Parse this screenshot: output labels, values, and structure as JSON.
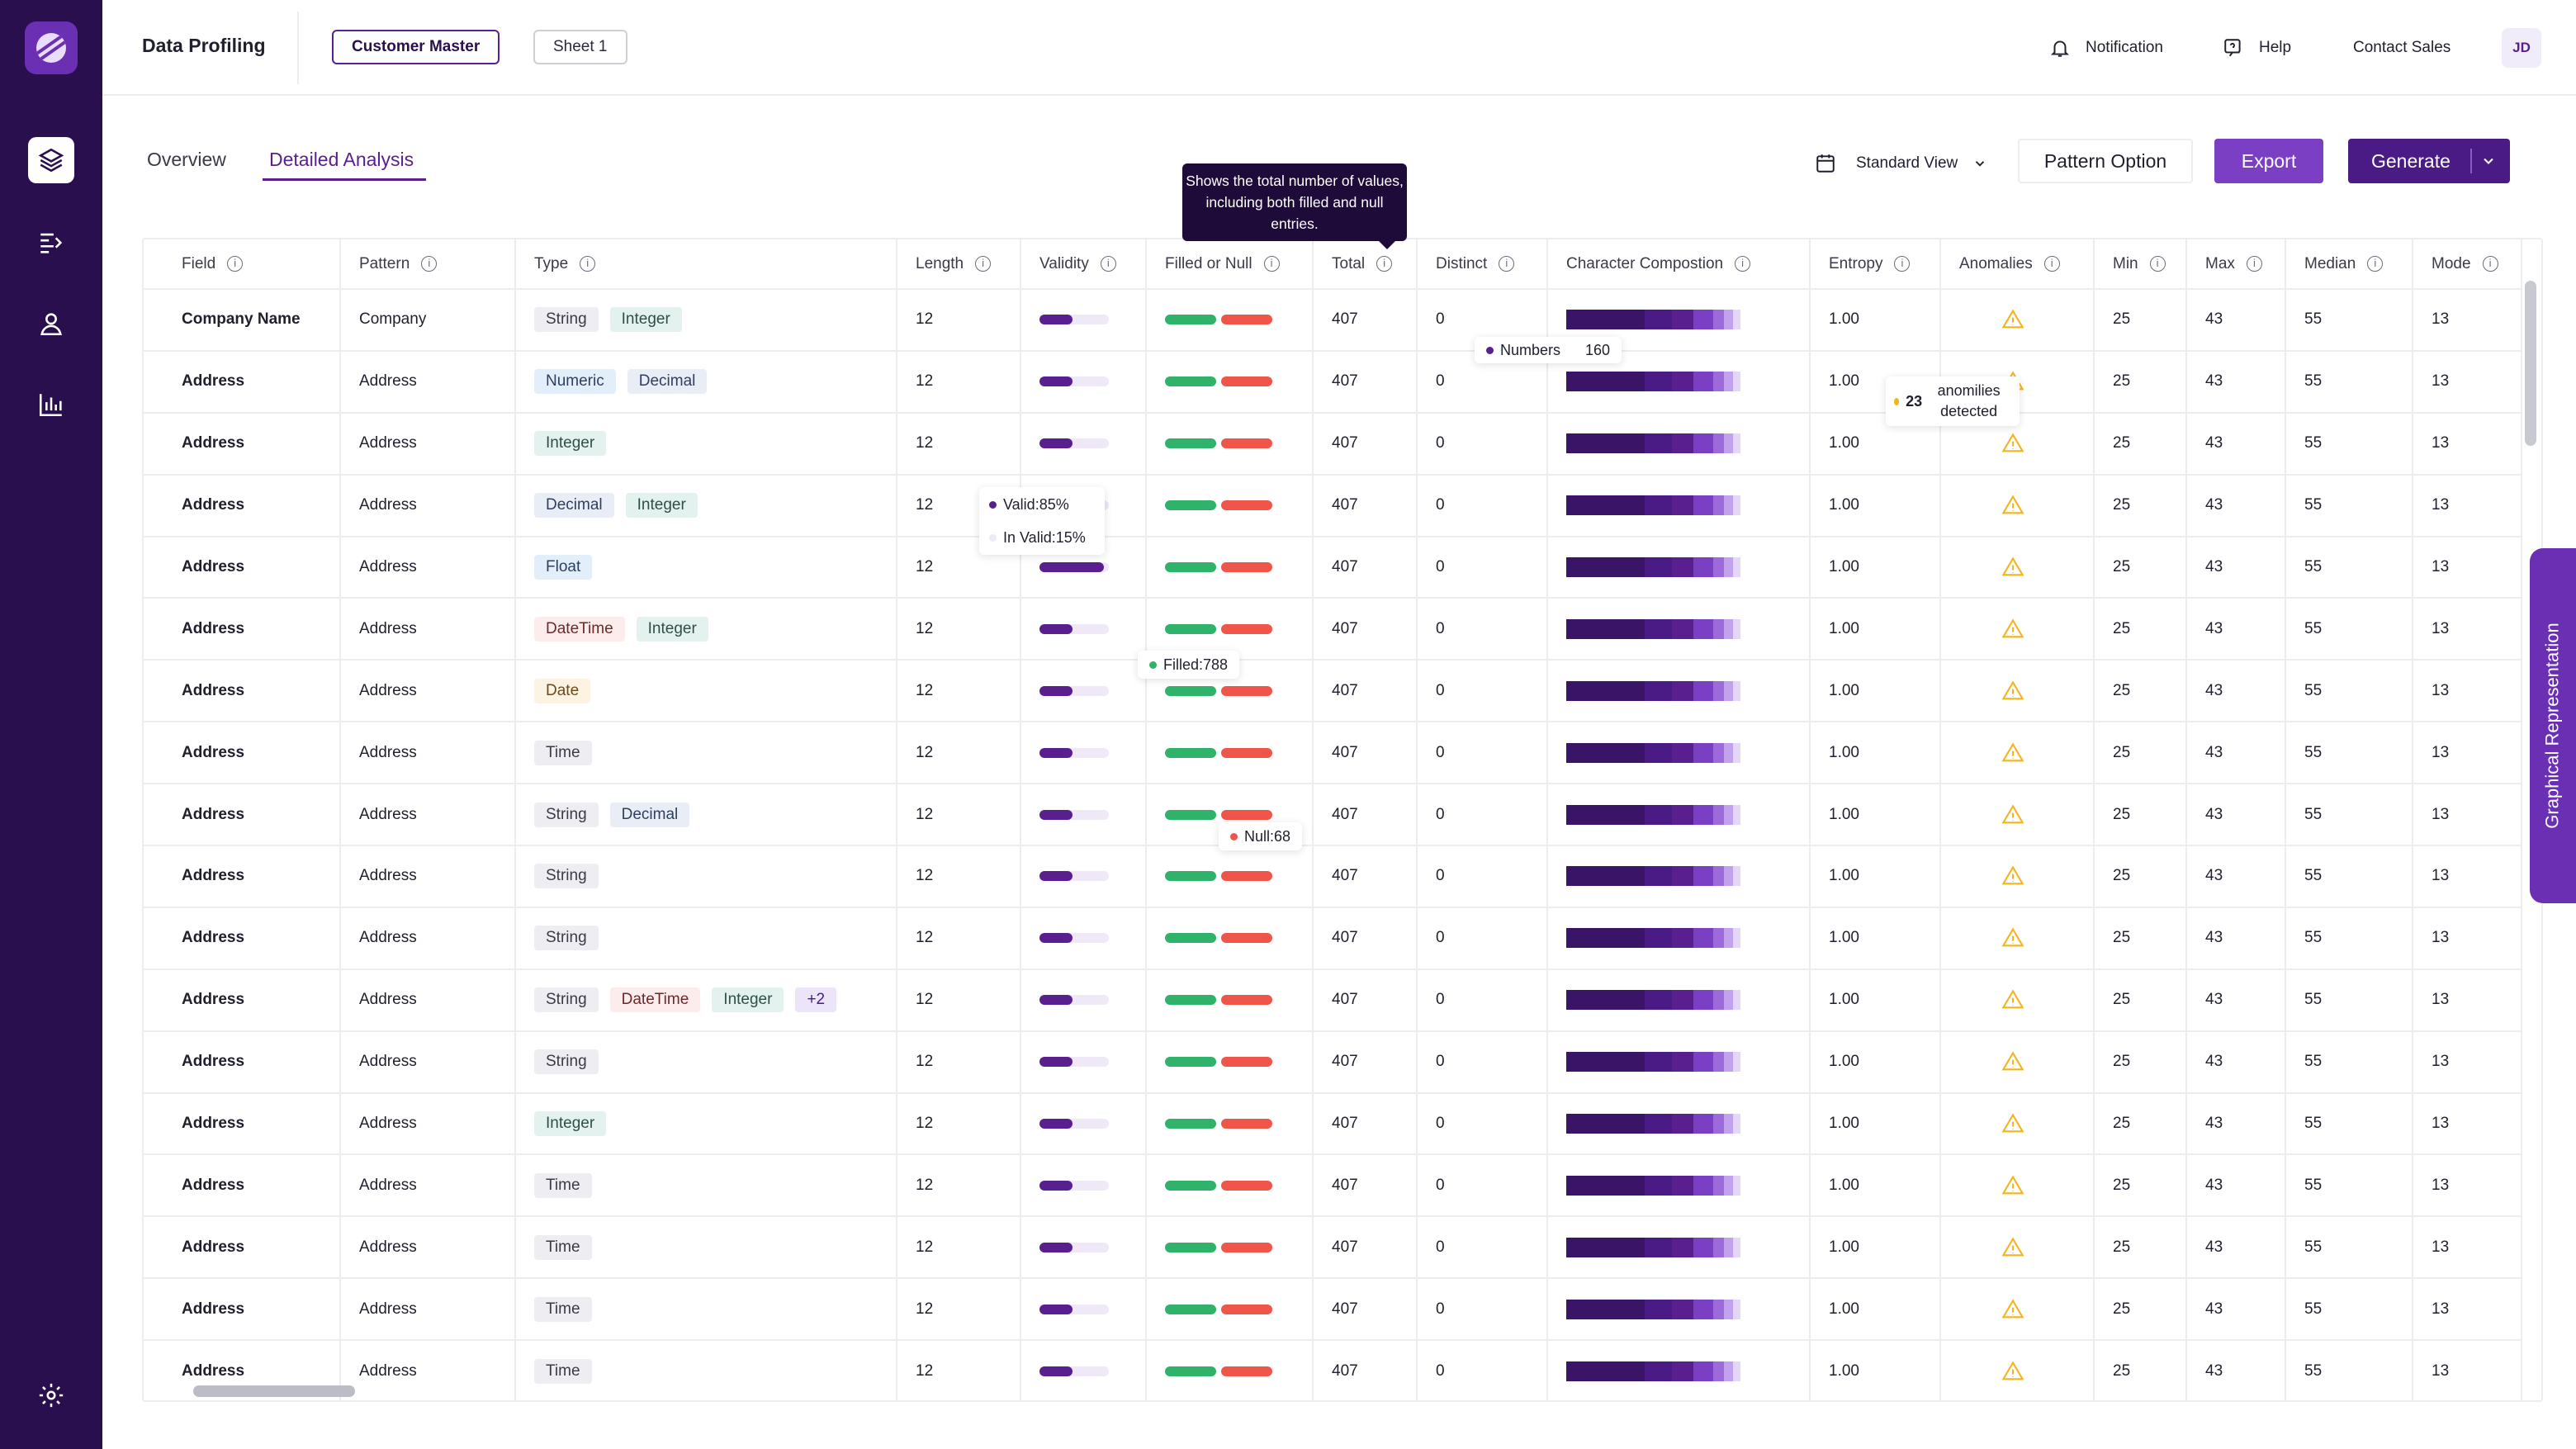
{
  "app": {
    "title": "Data Profiling"
  },
  "sheets": [
    "Customer Master",
    "Sheet 1"
  ],
  "topbar": {
    "notification": "Notification",
    "help": "Help",
    "contact_sales": "Contact Sales",
    "avatar_initials": "JD"
  },
  "tabs": [
    "Overview",
    "Detailed Analysis"
  ],
  "toolbar": {
    "view": "Standard View",
    "pattern_option": "Pattern Option",
    "export": "Export",
    "generate": "Generate"
  },
  "tooltips": {
    "total_header": "Shows the total number of values, including both filled and null entries.",
    "numbers_label": "Numbers",
    "numbers_value": "160",
    "anomalies_count": "23",
    "anomalies_text": "anomilies detected",
    "valid": "Valid:85%",
    "invalid": "In Valid:15%",
    "filled": "Filled:788",
    "null": "Null:68"
  },
  "side_tab": "Graphical Representation",
  "columns": [
    "Field",
    "Pattern",
    "Type",
    "Length",
    "Validity",
    "Filled or Null",
    "Total",
    "Distinct",
    "Character Compostion",
    "Entropy",
    "Anomalies",
    "Min",
    "Max",
    "Median",
    "Mode"
  ],
  "colors": {
    "validity": "#5a1f8f",
    "filled": "#2fb36a",
    "null": "#f0554a",
    "accent": "#7b3fc4",
    "sidebar": "#2a0f4f",
    "warning": "#f2b51d"
  },
  "rows": [
    {
      "field": "Company Name",
      "pattern": "Company",
      "types": [
        "String",
        "Integer"
      ],
      "length": "12",
      "total": "407",
      "distinct": "0",
      "entropy": "1.00",
      "min": "25",
      "max": "43",
      "median": "55",
      "mode": "13"
    },
    {
      "field": "Address",
      "pattern": "Address",
      "types": [
        "Numeric",
        "Decimal"
      ],
      "length": "12",
      "total": "407",
      "distinct": "0",
      "entropy": "1.00",
      "min": "25",
      "max": "43",
      "median": "55",
      "mode": "13"
    },
    {
      "field": "Address",
      "pattern": "Address",
      "types": [
        "Integer"
      ],
      "length": "12",
      "total": "407",
      "distinct": "0",
      "entropy": "1.00",
      "min": "25",
      "max": "43",
      "median": "55",
      "mode": "13"
    },
    {
      "field": "Address",
      "pattern": "Address",
      "types": [
        "Decimal",
        "Integer"
      ],
      "length": "12",
      "total": "407",
      "distinct": "0",
      "entropy": "1.00",
      "min": "25",
      "max": "43",
      "median": "55",
      "mode": "13"
    },
    {
      "field": "Address",
      "pattern": "Address",
      "types": [
        "Float"
      ],
      "length": "12",
      "total": "407",
      "distinct": "0",
      "entropy": "1.00",
      "min": "25",
      "max": "43",
      "median": "55",
      "mode": "13"
    },
    {
      "field": "Address",
      "pattern": "Address",
      "types": [
        "DateTime",
        "Integer"
      ],
      "length": "12",
      "total": "407",
      "distinct": "0",
      "entropy": "1.00",
      "min": "25",
      "max": "43",
      "median": "55",
      "mode": "13"
    },
    {
      "field": "Address",
      "pattern": "Address",
      "types": [
        "Date"
      ],
      "length": "12",
      "total": "407",
      "distinct": "0",
      "entropy": "1.00",
      "min": "25",
      "max": "43",
      "median": "55",
      "mode": "13"
    },
    {
      "field": "Address",
      "pattern": "Address",
      "types": [
        "Time"
      ],
      "length": "12",
      "total": "407",
      "distinct": "0",
      "entropy": "1.00",
      "min": "25",
      "max": "43",
      "median": "55",
      "mode": "13"
    },
    {
      "field": "Address",
      "pattern": "Address",
      "types": [
        "String",
        "Decimal"
      ],
      "length": "12",
      "total": "407",
      "distinct": "0",
      "entropy": "1.00",
      "min": "25",
      "max": "43",
      "median": "55",
      "mode": "13"
    },
    {
      "field": "Address",
      "pattern": "Address",
      "types": [
        "String"
      ],
      "length": "12",
      "total": "407",
      "distinct": "0",
      "entropy": "1.00",
      "min": "25",
      "max": "43",
      "median": "55",
      "mode": "13"
    },
    {
      "field": "Address",
      "pattern": "Address",
      "types": [
        "String"
      ],
      "length": "12",
      "total": "407",
      "distinct": "0",
      "entropy": "1.00",
      "min": "25",
      "max": "43",
      "median": "55",
      "mode": "13"
    },
    {
      "field": "Address",
      "pattern": "Address",
      "types": [
        "String",
        "DateTime",
        "Integer"
      ],
      "more": "+2",
      "length": "12",
      "total": "407",
      "distinct": "0",
      "entropy": "1.00",
      "min": "25",
      "max": "43",
      "median": "55",
      "mode": "13"
    },
    {
      "field": "Address",
      "pattern": "Address",
      "types": [
        "String"
      ],
      "length": "12",
      "total": "407",
      "distinct": "0",
      "entropy": "1.00",
      "min": "25",
      "max": "43",
      "median": "55",
      "mode": "13"
    },
    {
      "field": "Address",
      "pattern": "Address",
      "types": [
        "Integer"
      ],
      "length": "12",
      "total": "407",
      "distinct": "0",
      "entropy": "1.00",
      "min": "25",
      "max": "43",
      "median": "55",
      "mode": "13"
    },
    {
      "field": "Address",
      "pattern": "Address",
      "types": [
        "Time"
      ],
      "length": "12",
      "total": "407",
      "distinct": "0",
      "entropy": "1.00",
      "min": "25",
      "max": "43",
      "median": "55",
      "mode": "13"
    },
    {
      "field": "Address",
      "pattern": "Address",
      "types": [
        "Time"
      ],
      "length": "12",
      "total": "407",
      "distinct": "0",
      "entropy": "1.00",
      "min": "25",
      "max": "43",
      "median": "55",
      "mode": "13"
    },
    {
      "field": "Address",
      "pattern": "Address",
      "types": [
        "Time"
      ],
      "length": "12",
      "total": "407",
      "distinct": "0",
      "entropy": "1.00",
      "min": "25",
      "max": "43",
      "median": "55",
      "mode": "13"
    },
    {
      "field": "Address",
      "pattern": "Address",
      "types": [
        "Time"
      ],
      "length": "12",
      "total": "407",
      "distinct": "0",
      "entropy": "1.00",
      "min": "25",
      "max": "43",
      "median": "55",
      "mode": "13"
    }
  ]
}
